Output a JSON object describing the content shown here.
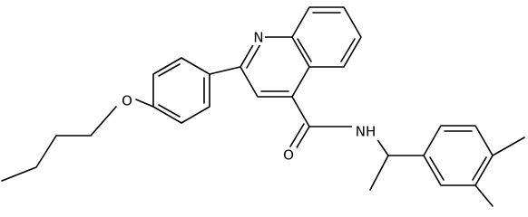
{
  "atoms": {
    "quinoline_n": "N",
    "ether_o": "O",
    "carbonyl_o": "O",
    "amide_nh": "NH"
  }
}
